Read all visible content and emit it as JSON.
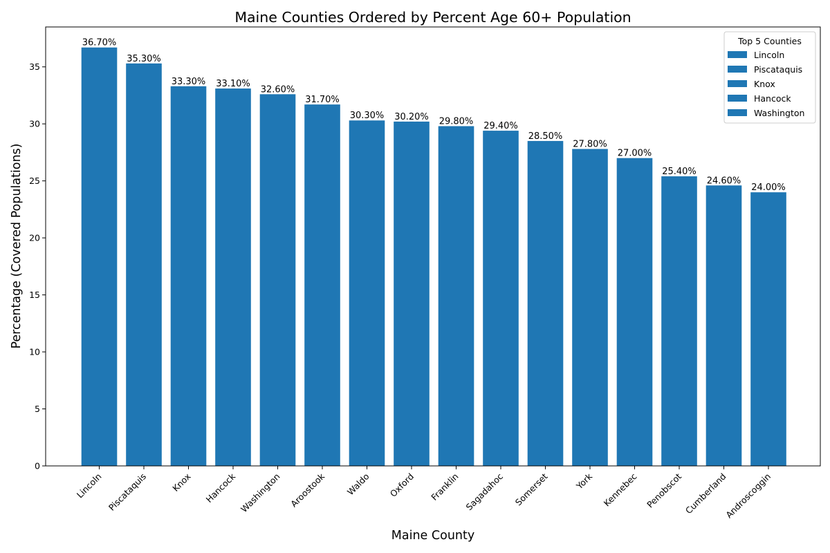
{
  "chart_data": {
    "type": "bar",
    "title": "Maine Counties Ordered by Percent Age 60+ Population",
    "xlabel": "Maine County",
    "ylabel": "Percentage (Covered Populations)",
    "categories": [
      "Lincoln",
      "Piscataquis",
      "Knox",
      "Hancock",
      "Washington",
      "Aroostook",
      "Waldo",
      "Oxford",
      "Franklin",
      "Sagadahoc",
      "Somerset",
      "York",
      "Kennebec",
      "Penobscot",
      "Cumberland",
      "Androscoggin"
    ],
    "values": [
      36.7,
      35.3,
      33.3,
      33.1,
      32.6,
      31.7,
      30.3,
      30.2,
      29.8,
      29.4,
      28.5,
      27.8,
      27.0,
      25.4,
      24.6,
      24.0
    ],
    "value_labels": [
      "36.70%",
      "35.30%",
      "33.30%",
      "33.10%",
      "32.60%",
      "31.70%",
      "30.30%",
      "30.20%",
      "29.80%",
      "29.40%",
      "28.50%",
      "27.80%",
      "27.00%",
      "25.40%",
      "24.60%",
      "24.00%"
    ],
    "ylim": [
      0,
      38.5
    ],
    "yticks": [
      0,
      5,
      10,
      15,
      20,
      25,
      30,
      35
    ],
    "grid": false,
    "bar_color": "#1f77b4",
    "legend": {
      "title": "Top 5 Counties",
      "placement": "top-right",
      "entries": [
        "Lincoln",
        "Piscataquis",
        "Knox",
        "Hancock",
        "Washington"
      ]
    }
  }
}
